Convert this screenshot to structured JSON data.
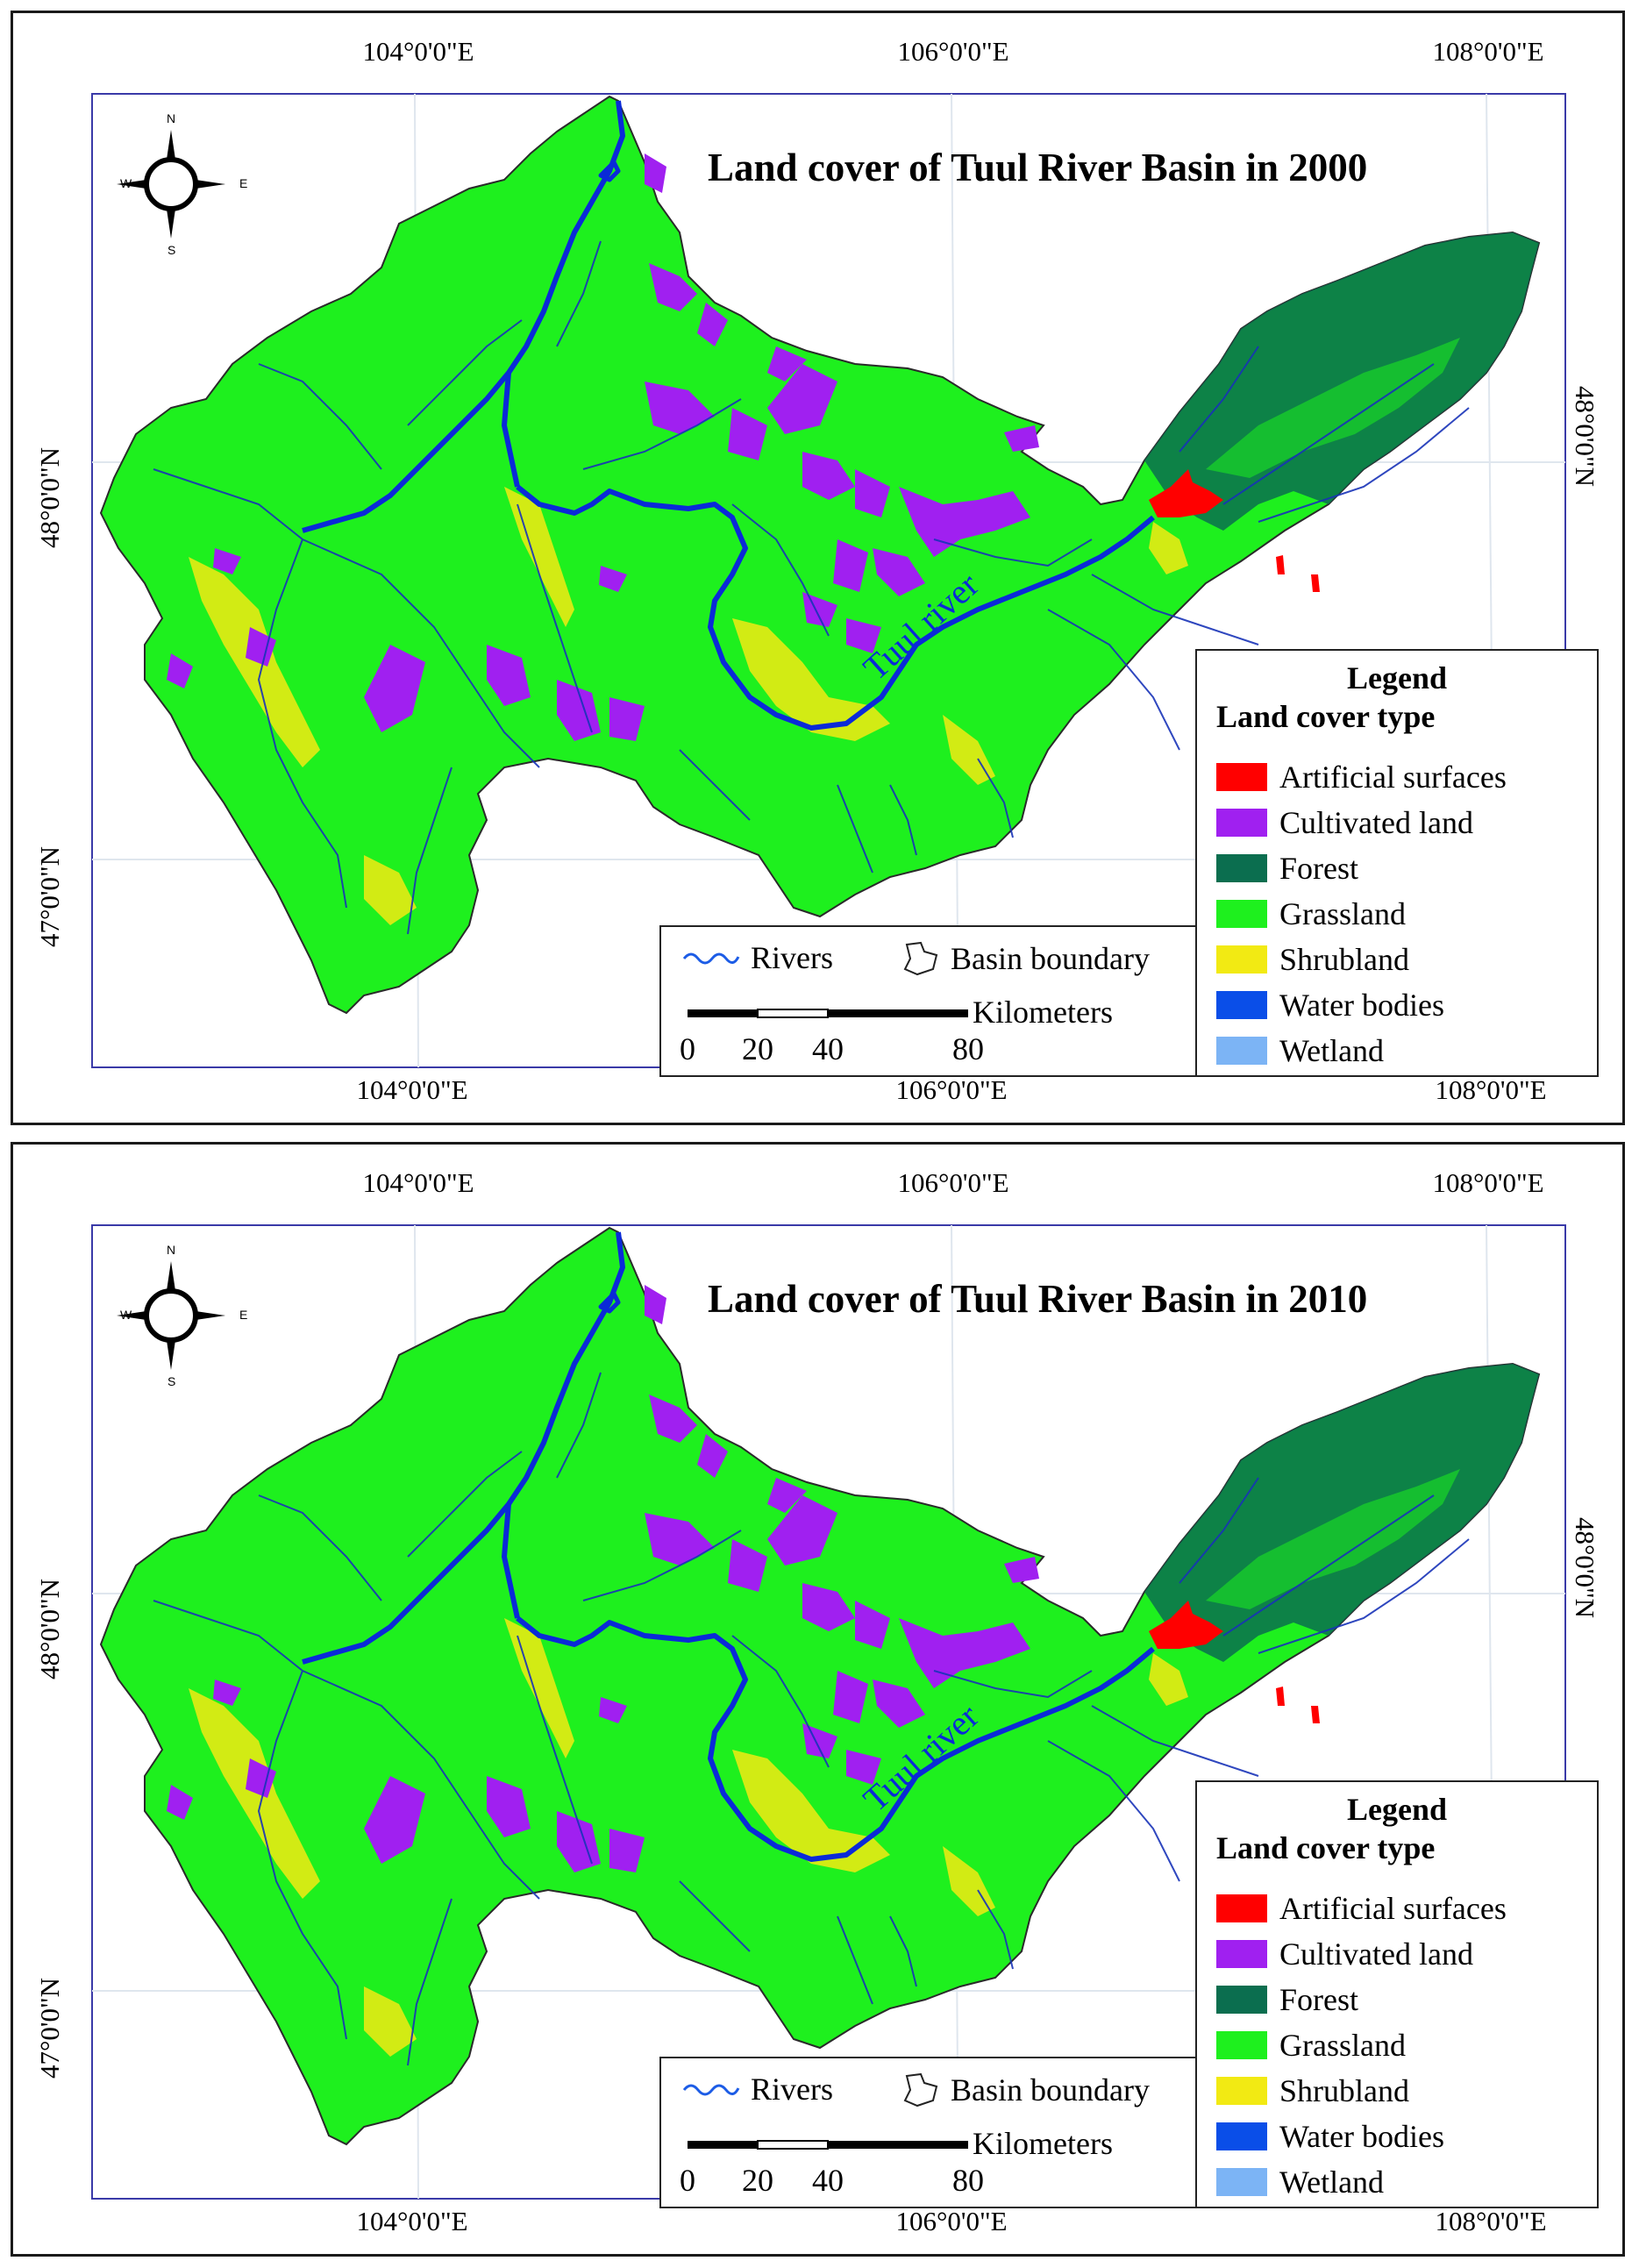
{
  "maps": [
    {
      "title": "Land cover of Tuul River Basin in 2000",
      "year": 2000
    },
    {
      "title": "Land cover of Tuul River Basin in 2010",
      "year": 2010
    }
  ],
  "grid": {
    "lon_labels": [
      "104°0'0\"E",
      "106°0'0\"E",
      "108°0'0\"E"
    ],
    "lat_labels": [
      "48°0'0\"N",
      "47°0'0\"N"
    ]
  },
  "compass": {
    "n": "N",
    "s": "S",
    "e": "E",
    "w": "W"
  },
  "river_label": "Tuul river",
  "legend": {
    "title": "Legend",
    "subtitle": "Land cover type",
    "items": [
      {
        "label": "Artificial surfaces",
        "color": "#ff0000"
      },
      {
        "label": "Cultivated land",
        "color": "#a020f0"
      },
      {
        "label": "Forest",
        "color": "#0b6e4f"
      },
      {
        "label": "Grassland",
        "color": "#1ef01e"
      },
      {
        "label": "Shrubland",
        "color": "#f2ea13"
      },
      {
        "label": "Water bodies",
        "color": "#0a4ee8"
      },
      {
        "label": "Wetland",
        "color": "#7cb4f5"
      }
    ]
  },
  "key": {
    "rivers": "Rivers",
    "basin": "Basin boundary",
    "units": "Kilometers",
    "scale_ticks": [
      "0",
      "20",
      "40",
      "80"
    ]
  },
  "colors": {
    "grassland": "#1ef01e",
    "forest": "#0b6e4f",
    "cultivated": "#a020f0",
    "artificial": "#ff0000",
    "shrub": "#f2ea13",
    "river": "#0a2ad8",
    "frame": "#3a3aa8"
  }
}
